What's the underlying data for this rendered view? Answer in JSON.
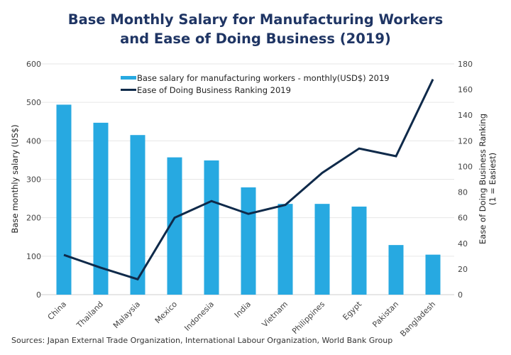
{
  "chart_data": {
    "type": "bar",
    "title_line1": "Base Monthly Salary for Manufacturing Workers",
    "title_line2": "and Ease of Doing Business (2019)",
    "categories": [
      "China",
      "Thailand",
      "Malaysia",
      "Mexico",
      "Indonesia",
      "India",
      "Vietnam",
      "Philippines",
      "Egypt",
      "Pakistan",
      "Bangladesh"
    ],
    "series": [
      {
        "name": "Base salary for manufacturing workers - monthly(USD$) 2019",
        "type": "bar",
        "axis": "left",
        "color": "#27a9e1",
        "values": [
          494,
          447,
          415,
          357,
          349,
          279,
          236,
          236,
          229,
          129,
          104
        ]
      },
      {
        "name": "Ease of Doing Business Ranking 2019",
        "type": "line",
        "axis": "right",
        "color": "#0f2a4a",
        "values": [
          31,
          21,
          12,
          60,
          73,
          63,
          70,
          95,
          114,
          108,
          168
        ]
      }
    ],
    "ylabel": "Base monthly salary (US$)",
    "ylim": [
      0,
      600
    ],
    "yticks": [
      "0",
      "100",
      "200",
      "300",
      "400",
      "500",
      "600"
    ],
    "y2label_line1": "Ease of Doing Business Ranking",
    "y2label_line2": "(1 = Easiest)",
    "y2lim": [
      0,
      180
    ],
    "y2ticks": [
      "0",
      "20",
      "40",
      "60",
      "80",
      "100",
      "120",
      "140",
      "160",
      "180"
    ],
    "xlabel": "",
    "grid": true,
    "legend": "top-center"
  },
  "source": "Sources: Japan External Trade Organization, International Labour Organization, World Bank Group"
}
